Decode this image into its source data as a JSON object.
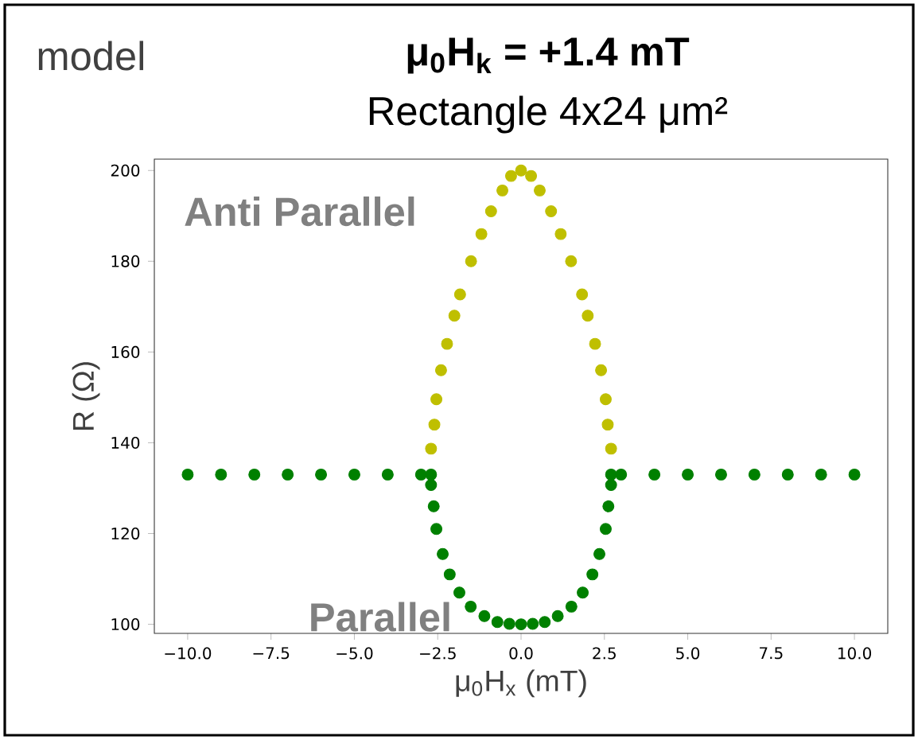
{
  "chart_data": {
    "type": "scatter",
    "title": "μ$_{0}$H$_{k}$ = +1.4 mT",
    "subtitle": "Rectangle 4x24 μm²",
    "xlabel": "μ$_{0}$H$_{x}$ (mT)",
    "ylabel": "R (Ω)",
    "annotations": [
      "model",
      "Anti Parallel",
      "Parallel"
    ],
    "xlim": [
      -11,
      11
    ],
    "ylim": [
      98,
      202.5
    ],
    "xticks": [
      {
        "value": -10,
        "label": "−10.0"
      },
      {
        "value": -7.5,
        "label": "−7.5"
      },
      {
        "value": -5,
        "label": "−5.0"
      },
      {
        "value": -2.5,
        "label": "−2.5"
      },
      {
        "value": 0,
        "label": "0.0"
      },
      {
        "value": 2.5,
        "label": "2.5"
      },
      {
        "value": 5,
        "label": "5.0"
      },
      {
        "value": 7.5,
        "label": "7.5"
      },
      {
        "value": 10,
        "label": "10.0"
      }
    ],
    "yticks": [
      100,
      120,
      140,
      160,
      180,
      200
    ],
    "marker": "circle",
    "series": [
      {
        "color": "#bfbf00",
        "x": [
          -2.7,
          -2.6,
          -2.54,
          -2.4,
          -2.22,
          -2.0,
          -1.83,
          -1.5,
          -1.19,
          -0.9,
          -0.56,
          -0.3,
          0,
          0.3,
          0.56,
          0.9,
          1.19,
          1.5,
          1.83,
          2.0,
          2.22,
          2.4,
          2.54,
          2.6,
          2.7
        ],
        "values": [
          138.7,
          144,
          149.6,
          156,
          161.8,
          168,
          172.7,
          180,
          186,
          191,
          195.6,
          198.8,
          200,
          198.8,
          195.6,
          191,
          186,
          180,
          172.7,
          168,
          161.8,
          156,
          149.6,
          144,
          138.7
        ]
      },
      {
        "color": "#008000",
        "x": [
          -10,
          -9,
          -8,
          -7,
          -6,
          -5,
          -4,
          -3,
          -2.7,
          -2.7,
          -2.62,
          -2.54,
          -2.35,
          -2.14,
          -1.85,
          -1.51,
          -1.1,
          -0.71,
          -0.35,
          0,
          0.35,
          0.71,
          1.1,
          1.51,
          1.85,
          2.14,
          2.35,
          2.54,
          2.62,
          2.7,
          2.7,
          3,
          4,
          5,
          6,
          7,
          8,
          9,
          10
        ],
        "values": [
          133,
          133,
          133,
          133,
          133,
          133,
          133,
          133,
          133,
          130.7,
          126,
          121,
          115.5,
          111,
          107,
          103.9,
          101.8,
          100.5,
          100.1,
          100,
          100.1,
          100.5,
          101.8,
          103.9,
          107,
          111,
          115.5,
          121,
          126,
          130.7,
          133,
          133,
          133,
          133,
          133,
          133,
          133,
          133,
          133
        ]
      }
    ]
  }
}
